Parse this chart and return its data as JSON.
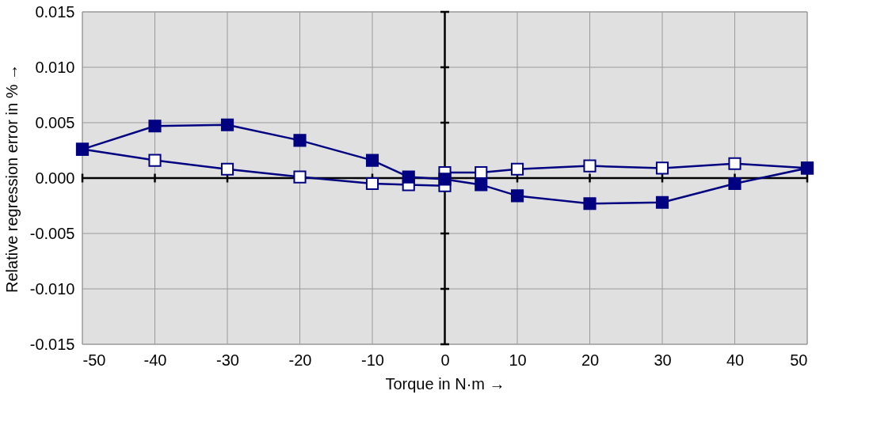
{
  "chart_data": {
    "type": "line",
    "xlabel": "Torque in N·m →",
    "ylabel": "Relative regression error in % →",
    "xlim": [
      -50,
      50
    ],
    "xticks": [
      -50,
      -40,
      -30,
      -20,
      -10,
      0,
      10,
      20,
      30,
      40,
      50
    ],
    "ylim": [
      -0.015,
      0.015
    ],
    "yticks": [
      -0.015,
      {
        "value": -0.01,
        "label": "-0.010"
      },
      -0.005,
      {
        "value": 0,
        "label": "0.000"
      },
      0.005,
      {
        "value": 0.01,
        "label": "0.010"
      },
      0.015
    ],
    "grid": true,
    "marker": "square",
    "line_style": "solid",
    "series": [
      {
        "color": "#000080",
        "x": [
          50,
          40,
          30,
          20,
          10,
          5,
          0,
          -5,
          -10,
          -20,
          -30,
          -40,
          -50
        ],
        "values": [
          0.0009,
          -0.0005,
          -0.0022,
          -0.0023,
          -0.0016,
          -0.0006,
          -0.0001,
          0.0001,
          0.0016,
          0.0034,
          0.0048,
          0.0047,
          0.0026
        ]
      },
      {
        "color": "#000080",
        "x": [
          -50,
          -40,
          -30,
          -20,
          -10,
          -5,
          0,
          0,
          5,
          10,
          20,
          30,
          40,
          50
        ],
        "values": [
          0.0026,
          0.0016,
          0.0008,
          0.0001,
          -0.0005,
          -0.0006,
          -0.0007,
          0.0005,
          0.0005,
          0.0008,
          0.0011,
          0.0009,
          0.0013,
          0.0009
        ]
      }
    ]
  }
}
